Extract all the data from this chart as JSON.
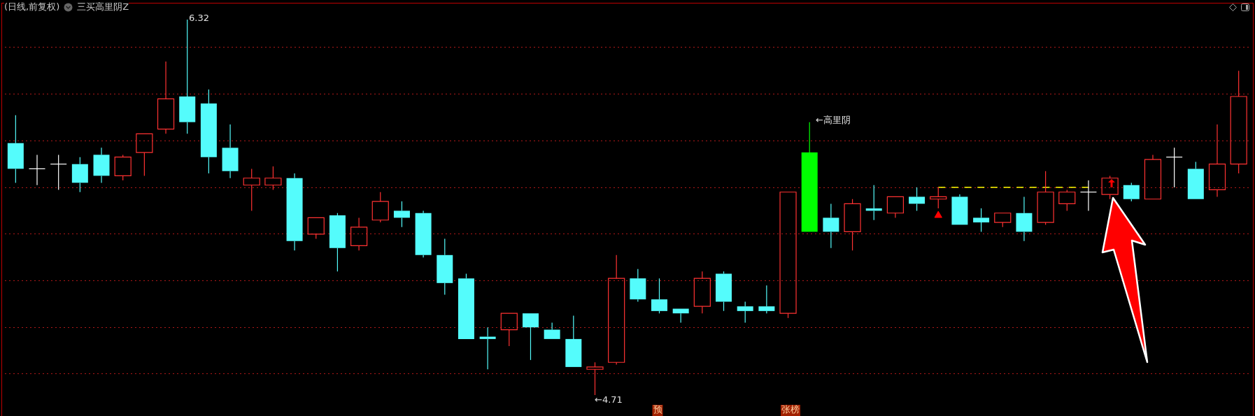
{
  "chart_data": {
    "type": "candlestick",
    "title": "(日线,前复权)",
    "subtitle": "三买高里阴Z",
    "categories": [
      null,
      null,
      null,
      null,
      null,
      null,
      null,
      null,
      null,
      null,
      null,
      null,
      null,
      null,
      null,
      null,
      null,
      null,
      null,
      null,
      null,
      null,
      null,
      null,
      null,
      null,
      null,
      null,
      null,
      null,
      null,
      null,
      null,
      null,
      null,
      null,
      null,
      null,
      null,
      null,
      null,
      null,
      null,
      null,
      null,
      null,
      null,
      null,
      null,
      null,
      null,
      null,
      null,
      null,
      null,
      null,
      null,
      null
    ],
    "ohlc": [
      [
        5.79,
        5.91,
        5.62,
        5.68
      ],
      [
        5.68,
        5.74,
        5.61,
        5.68
      ],
      [
        5.7,
        5.74,
        5.59,
        5.7
      ],
      [
        5.7,
        5.73,
        5.58,
        5.62
      ],
      [
        5.74,
        5.77,
        5.62,
        5.65
      ],
      [
        5.65,
        5.74,
        5.63,
        5.73
      ],
      [
        5.75,
        5.83,
        5.65,
        5.83
      ],
      [
        5.85,
        6.14,
        5.83,
        5.98
      ],
      [
        5.99,
        6.32,
        5.83,
        5.88
      ],
      [
        5.96,
        6.02,
        5.66,
        5.73
      ],
      [
        5.77,
        5.87,
        5.64,
        5.67
      ],
      [
        5.61,
        5.68,
        5.5,
        5.64
      ],
      [
        5.61,
        5.69,
        5.59,
        5.64
      ],
      [
        5.64,
        5.66,
        5.33,
        5.37
      ],
      [
        5.4,
        5.47,
        5.38,
        5.47
      ],
      [
        5.48,
        5.49,
        5.24,
        5.34
      ],
      [
        5.35,
        5.47,
        5.33,
        5.43
      ],
      [
        5.46,
        5.58,
        5.45,
        5.54
      ],
      [
        5.5,
        5.54,
        5.43,
        5.47
      ],
      [
        5.49,
        5.5,
        5.3,
        5.31
      ],
      [
        5.31,
        5.38,
        5.14,
        5.19
      ],
      [
        5.21,
        5.23,
        4.95,
        4.95
      ],
      [
        4.96,
        5.0,
        4.82,
        4.95
      ],
      [
        4.99,
        5.06,
        4.92,
        5.06
      ],
      [
        5.06,
        5.06,
        4.86,
        5.0
      ],
      [
        4.99,
        5.02,
        4.95,
        4.95
      ],
      [
        4.95,
        5.05,
        4.83,
        4.83
      ],
      [
        4.82,
        4.85,
        4.71,
        4.83
      ],
      [
        4.85,
        5.31,
        4.84,
        5.21
      ],
      [
        5.21,
        5.25,
        5.11,
        5.12
      ],
      [
        5.12,
        5.21,
        5.06,
        5.07
      ],
      [
        5.08,
        5.08,
        5.02,
        5.06
      ],
      [
        5.09,
        5.24,
        5.06,
        5.21
      ],
      [
        5.23,
        5.24,
        5.07,
        5.11
      ],
      [
        5.09,
        5.11,
        5.02,
        5.07
      ],
      [
        5.09,
        5.18,
        5.06,
        5.07
      ],
      [
        5.06,
        5.58,
        5.04,
        5.58
      ],
      [
        5.75,
        5.88,
        5.41,
        5.41
      ],
      [
        5.47,
        5.53,
        5.34,
        5.41
      ],
      [
        5.41,
        5.55,
        5.33,
        5.53
      ],
      [
        5.51,
        5.61,
        5.46,
        5.5
      ],
      [
        5.49,
        5.56,
        5.47,
        5.56
      ],
      [
        5.56,
        5.6,
        5.5,
        5.53
      ],
      [
        5.55,
        5.6,
        5.51,
        5.56
      ],
      [
        5.56,
        5.57,
        5.44,
        5.44
      ],
      [
        5.47,
        5.51,
        5.41,
        5.45
      ],
      [
        5.45,
        5.49,
        5.43,
        5.49
      ],
      [
        5.49,
        5.56,
        5.37,
        5.41
      ],
      [
        5.45,
        5.67,
        5.44,
        5.58
      ],
      [
        5.53,
        5.59,
        5.5,
        5.58
      ],
      [
        5.58,
        5.63,
        5.5,
        5.58
      ],
      [
        5.57,
        5.65,
        5.55,
        5.64
      ],
      [
        5.61,
        5.62,
        5.54,
        5.55
      ],
      [
        5.55,
        5.74,
        5.55,
        5.72
      ],
      [
        5.73,
        5.77,
        5.6,
        5.73
      ],
      [
        5.68,
        5.71,
        5.55,
        5.55
      ],
      [
        5.59,
        5.87,
        5.56,
        5.7
      ],
      [
        5.7,
        6.1,
        5.66,
        5.99
      ]
    ],
    "colors": [
      "#54fcfc",
      "#ffffff",
      "#ffffff",
      "#54fcfc",
      "#54fcfc",
      "#ff3232",
      "#ff3232",
      "#ff3232",
      "#54fcfc",
      "#54fcfc",
      "#54fcfc",
      "#ff3232",
      "#ff3232",
      "#54fcfc",
      "#ff3232",
      "#54fcfc",
      "#ff3232",
      "#ff3232",
      "#54fcfc",
      "#54fcfc",
      "#54fcfc",
      "#54fcfc",
      "#54fcfc",
      "#ff3232",
      "#54fcfc",
      "#54fcfc",
      "#54fcfc",
      "#ff3232",
      "#ff3232",
      "#54fcfc",
      "#54fcfc",
      "#54fcfc",
      "#ff3232",
      "#54fcfc",
      "#54fcfc",
      "#54fcfc",
      "#ff3232",
      "#00ff00",
      "#54fcfc",
      "#ff3232",
      "#54fcfc",
      "#ff3232",
      "#54fcfc",
      "#ff3232",
      "#54fcfc",
      "#54fcfc",
      "#ff3232",
      "#54fcfc",
      "#ff3232",
      "#ff3232",
      "#ffffff",
      "#ff3232",
      "#54fcfc",
      "#ff3232",
      "#ffffff",
      "#54fcfc",
      "#ff3232",
      "#ff3232"
    ],
    "series": [
      {
        "type": "line",
        "color": "#ffff00",
        "line_style": "dashed",
        "values": [
          null,
          null,
          null,
          null,
          null,
          null,
          null,
          null,
          null,
          null,
          null,
          null,
          null,
          null,
          null,
          null,
          null,
          null,
          null,
          null,
          null,
          null,
          null,
          null,
          null,
          null,
          null,
          null,
          null,
          null,
          null,
          null,
          null,
          null,
          null,
          null,
          null,
          null,
          null,
          null,
          null,
          null,
          null,
          5.6,
          5.6,
          5.6,
          5.6,
          5.6,
          5.6,
          5.6,
          5.6,
          null,
          null,
          null,
          null,
          null,
          null,
          null
        ]
      },
      {
        "type": "scatter",
        "color": "#ff0000",
        "marker": "triangle",
        "values": [
          null,
          null,
          null,
          null,
          null,
          null,
          null,
          null,
          null,
          null,
          null,
          null,
          null,
          null,
          null,
          null,
          null,
          null,
          null,
          null,
          null,
          null,
          null,
          null,
          null,
          null,
          null,
          null,
          null,
          null,
          null,
          null,
          null,
          null,
          null,
          null,
          null,
          null,
          null,
          null,
          null,
          null,
          null,
          5.48,
          null,
          null,
          null,
          null,
          null,
          null,
          null,
          null,
          null,
          null,
          null,
          null,
          null,
          null
        ]
      }
    ],
    "annotations": [
      "6.32",
      "←4.71",
      "←高里阴",
      "预",
      "张榜"
    ],
    "yticks": [
      {
        "value": 4.8,
        "label": null
      },
      {
        "value": 5.0,
        "label": null
      },
      {
        "value": 5.2,
        "label": null
      },
      {
        "value": 5.4,
        "label": null
      },
      {
        "value": 5.6,
        "label": null
      },
      {
        "value": 5.8,
        "label": null
      },
      {
        "value": 6.0,
        "label": null
      },
      {
        "value": 6.2,
        "label": null
      }
    ],
    "grid": "y",
    "legend": false
  }
}
